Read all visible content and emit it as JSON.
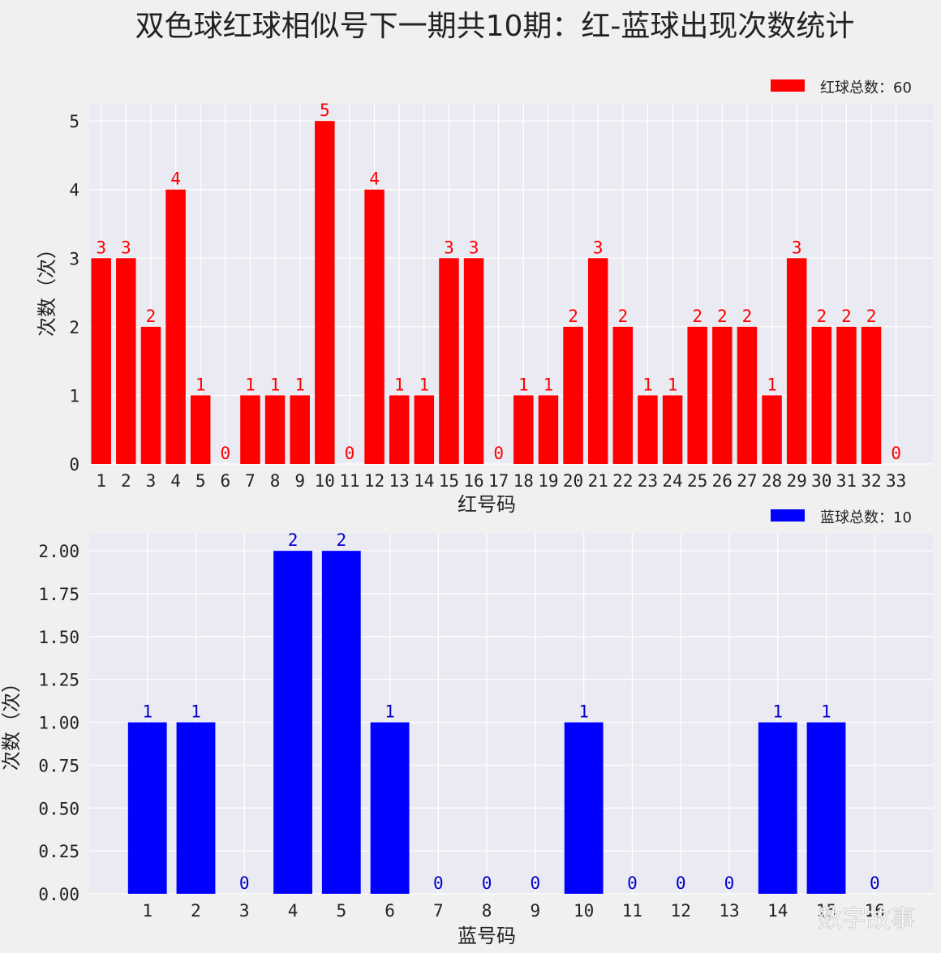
{
  "title": "双色球红球相似号下一期共10期：红-蓝球出现次数统计",
  "watermark": "数字故事",
  "chart_data": [
    {
      "type": "bar",
      "categories": [
        "1",
        "2",
        "3",
        "4",
        "5",
        "6",
        "7",
        "8",
        "9",
        "10",
        "11",
        "12",
        "13",
        "14",
        "15",
        "16",
        "17",
        "18",
        "19",
        "20",
        "21",
        "22",
        "23",
        "24",
        "25",
        "26",
        "27",
        "28",
        "29",
        "30",
        "31",
        "32",
        "33"
      ],
      "values": [
        3,
        3,
        2,
        4,
        1,
        0,
        1,
        1,
        1,
        5,
        0,
        4,
        1,
        1,
        3,
        3,
        0,
        1,
        1,
        2,
        3,
        2,
        1,
        1,
        2,
        2,
        2,
        1,
        3,
        2,
        2,
        2,
        0
      ],
      "xlabel": "红号码",
      "ylabel": "次数（次）",
      "yticks": [
        "0",
        "1",
        "2",
        "3",
        "4",
        "5"
      ],
      "ylim": [
        0,
        5.25
      ],
      "legend": "红球总数：60",
      "legend_position": "top-right",
      "color": "#ff0000",
      "label_color": "#ff0000",
      "grid": true
    },
    {
      "type": "bar",
      "categories": [
        "1",
        "2",
        "3",
        "4",
        "5",
        "6",
        "7",
        "8",
        "9",
        "10",
        "11",
        "12",
        "13",
        "14",
        "15",
        "16"
      ],
      "values": [
        1,
        1,
        0,
        2,
        2,
        1,
        0,
        0,
        0,
        1,
        0,
        0,
        0,
        1,
        1,
        0
      ],
      "xlabel": "蓝号码",
      "ylabel": "次数（次）",
      "yticks": [
        "0.00",
        "0.25",
        "0.50",
        "0.75",
        "1.00",
        "1.25",
        "1.50",
        "1.75",
        "2.00"
      ],
      "ylim": [
        0,
        2.1
      ],
      "legend": "蓝球总数：10",
      "legend_position": "top-right",
      "color": "#0000ff",
      "label_color": "#0000cc",
      "grid": true
    }
  ]
}
